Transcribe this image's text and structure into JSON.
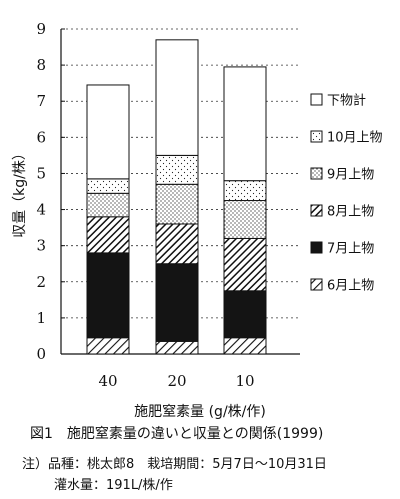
{
  "chart_data": {
    "type": "bar",
    "stacked": true,
    "categories": [
      "40",
      "20",
      "10"
    ],
    "ylabel": "収量（kg/株）",
    "xlabel": "施肥窒素量 (g/株/作)",
    "ylim": [
      0,
      9
    ],
    "yticks": [
      "0",
      "1",
      "2",
      "3",
      "4",
      "5",
      "6",
      "7",
      "8",
      "9"
    ],
    "grid": "dashed horizontal",
    "legend_position": "right",
    "series": [
      {
        "name": "6月上物",
        "pattern": "hatch-light",
        "values": [
          0.45,
          0.35,
          0.45
        ]
      },
      {
        "name": "7月上物",
        "pattern": "solid-black",
        "values": [
          2.35,
          2.15,
          1.3
        ]
      },
      {
        "name": "8月上物",
        "pattern": "hatch-dense",
        "values": [
          1.0,
          1.1,
          1.45
        ]
      },
      {
        "name": "9月上物",
        "pattern": "dots-dense",
        "values": [
          0.65,
          1.1,
          1.05
        ]
      },
      {
        "name": "10月上物",
        "pattern": "dots-sparse",
        "values": [
          0.4,
          0.8,
          0.55
        ]
      },
      {
        "name": "下物計",
        "pattern": "white",
        "values": [
          2.6,
          3.2,
          3.15
        ]
      }
    ]
  },
  "caption": "図1　施肥窒素量の違いと収量との関係(1999)",
  "notes": {
    "line1": "注）品種：桃太郎8　栽培期間：5月7日～10月31日",
    "line2": "灌水量：191L/株/作"
  },
  "colors": {
    "ink": "#111111",
    "background": "#ffffff"
  }
}
